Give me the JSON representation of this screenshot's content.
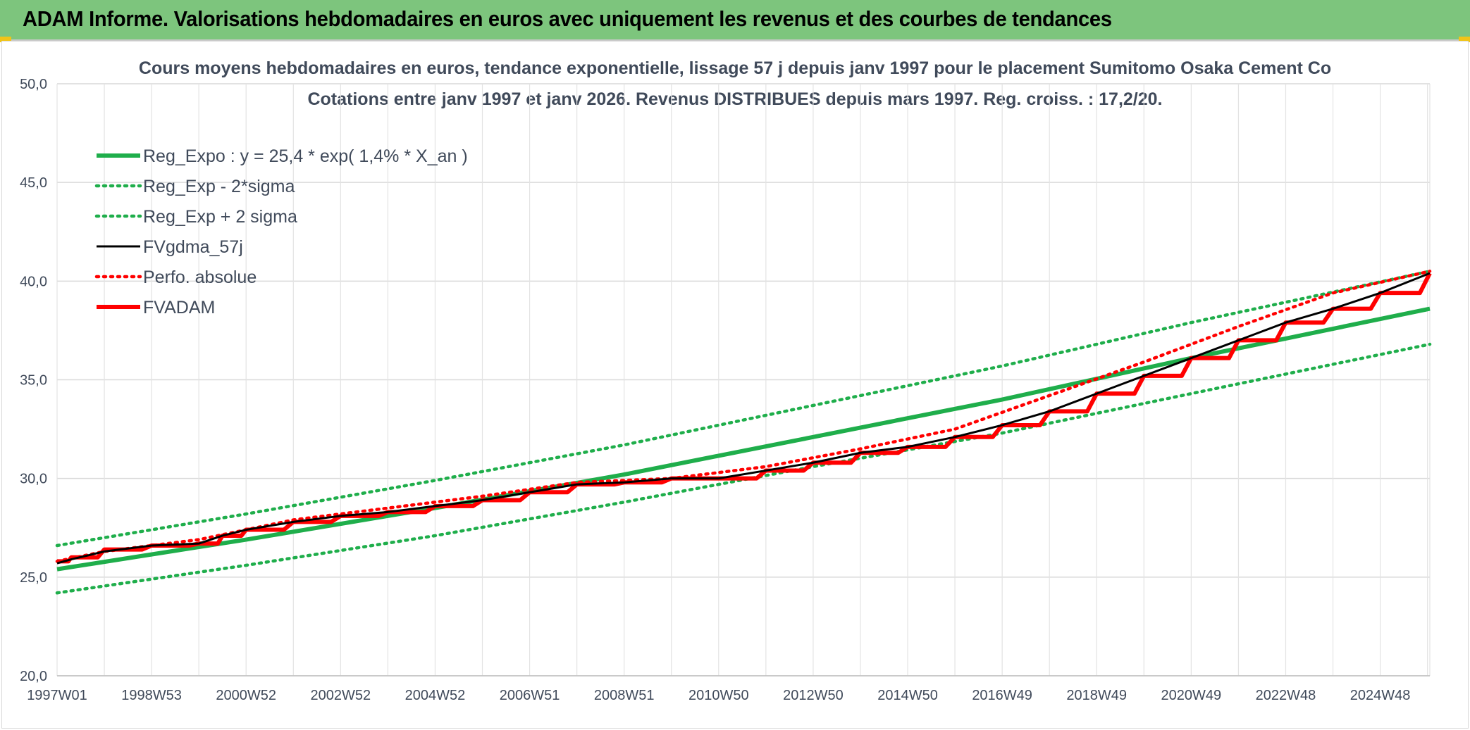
{
  "header": {
    "title": "ADAM Informe. Valorisations hebdomadaires en euros avec uniquement les revenus et des courbes de tendances",
    "background": "#7dc57d"
  },
  "chart_data": {
    "type": "line",
    "title": "Cours moyens hebdomadaires en euros, tendance exponentielle, lissage 57 j depuis janv 1997 pour le placement Sumitomo Osaka Cement Co",
    "subtitle": "Cotations entre janv 1997 et janv 2026. Revenus DISTRIBUES depuis mars 1997. Reg. croiss. : 17,2/20.",
    "xlabel": "",
    "ylabel": "",
    "ylim": [
      20,
      50
    ],
    "y_ticks": [
      "20,0",
      "25,0",
      "30,0",
      "35,0",
      "40,0",
      "45,0",
      "50,0"
    ],
    "x_range": [
      1997.0,
      2026.05
    ],
    "x_ticks": [
      {
        "label": "1997W01",
        "x": 1997.0
      },
      {
        "label": "1998W53",
        "x": 1999.0
      },
      {
        "label": "2000W52",
        "x": 2001.0
      },
      {
        "label": "2002W52",
        "x": 2003.0
      },
      {
        "label": "2004W52",
        "x": 2005.0
      },
      {
        "label": "2006W51",
        "x": 2007.0
      },
      {
        "label": "2008W51",
        "x": 2009.0
      },
      {
        "label": "2010W50",
        "x": 2011.0
      },
      {
        "label": "2012W50",
        "x": 2013.0
      },
      {
        "label": "2014W50",
        "x": 2015.0
      },
      {
        "label": "2016W49",
        "x": 2017.0
      },
      {
        "label": "2018W49",
        "x": 2019.0
      },
      {
        "label": "2020W49",
        "x": 2021.0
      },
      {
        "label": "2022W48",
        "x": 2023.0
      },
      {
        "label": "2024W48",
        "x": 2025.0
      }
    ],
    "grid": true,
    "legend_position": "top-left",
    "series": [
      {
        "name": "Reg_Expo : y = 25,4 * exp( 1,4% *  X_an )",
        "color": "#1fae4b",
        "style": "solid-thick",
        "x": [
          1997.0,
          2001.0,
          2005.0,
          2009.0,
          2013.0,
          2017.0,
          2021.0,
          2026.05
        ],
        "y": [
          25.4,
          26.9,
          28.5,
          30.2,
          32.1,
          34.0,
          36.1,
          38.6
        ]
      },
      {
        "name": "Reg_Exp - 2*sigma",
        "color": "#1fae4b",
        "style": "dotted",
        "x": [
          1997.0,
          2001.0,
          2005.0,
          2009.0,
          2013.0,
          2017.0,
          2021.0,
          2026.05
        ],
        "y": [
          24.2,
          25.6,
          27.1,
          28.8,
          30.6,
          32.3,
          34.3,
          36.8
        ]
      },
      {
        "name": "Reg_Exp + 2 sigma",
        "color": "#1fae4b",
        "style": "dotted",
        "x": [
          1997.0,
          2001.0,
          2005.0,
          2009.0,
          2013.0,
          2017.0,
          2021.0,
          2026.05
        ],
        "y": [
          26.6,
          28.2,
          29.9,
          31.7,
          33.7,
          35.7,
          37.9,
          40.5
        ]
      },
      {
        "name": "FVgdma_57j",
        "color": "#000000",
        "style": "solid",
        "x": [
          1997.0,
          1997.3,
          1998.0,
          1999.0,
          2000.0,
          2000.5,
          2001.0,
          2002.0,
          2003.0,
          2004.0,
          2005.0,
          2006.0,
          2007.0,
          2008.0,
          2009.0,
          2010.0,
          2011.0,
          2012.0,
          2013.0,
          2014.0,
          2015.0,
          2016.0,
          2017.0,
          2018.0,
          2019.0,
          2020.0,
          2021.0,
          2022.0,
          2023.0,
          2024.0,
          2025.0,
          2026.05
        ],
        "y": [
          25.7,
          25.9,
          26.3,
          26.6,
          26.7,
          27.1,
          27.4,
          27.8,
          28.1,
          28.3,
          28.6,
          28.9,
          29.3,
          29.7,
          29.8,
          30.0,
          30.0,
          30.4,
          30.8,
          31.3,
          31.6,
          32.1,
          32.7,
          33.4,
          34.3,
          35.2,
          36.1,
          37.0,
          37.9,
          38.6,
          39.4,
          40.4
        ]
      },
      {
        "name": "Perfo. absolue",
        "color": "#ff0000",
        "style": "dotted",
        "x": [
          1997.0,
          1998.0,
          2000.0,
          2002.0,
          2004.0,
          2006.0,
          2008.0,
          2010.0,
          2012.0,
          2014.0,
          2016.0,
          2018.0,
          2020.0,
          2022.0,
          2024.0,
          2026.05
        ],
        "y": [
          25.8,
          26.3,
          26.9,
          27.9,
          28.5,
          29.1,
          29.8,
          30.0,
          30.6,
          31.5,
          32.5,
          34.2,
          35.9,
          37.7,
          39.4,
          40.5
        ]
      },
      {
        "name": "FVADAM",
        "color": "#ff0000",
        "style": "step-thick",
        "x": [
          1997.0,
          1997.3,
          1998.0,
          1999.0,
          2000.0,
          2000.5,
          2001.0,
          2002.0,
          2003.0,
          2004.0,
          2005.0,
          2006.0,
          2007.0,
          2008.0,
          2009.0,
          2010.0,
          2011.0,
          2012.0,
          2013.0,
          2014.0,
          2015.0,
          2016.0,
          2017.0,
          2018.0,
          2019.0,
          2020.0,
          2021.0,
          2022.0,
          2023.0,
          2024.0,
          2025.0,
          2026.05
        ],
        "y": [
          25.8,
          26.0,
          26.4,
          26.6,
          26.7,
          27.1,
          27.4,
          27.8,
          28.1,
          28.3,
          28.6,
          28.9,
          29.3,
          29.7,
          29.8,
          30.0,
          30.0,
          30.4,
          30.8,
          31.3,
          31.6,
          32.1,
          32.7,
          33.4,
          34.3,
          35.2,
          36.1,
          37.0,
          37.9,
          38.6,
          39.4,
          40.4
        ]
      }
    ]
  }
}
